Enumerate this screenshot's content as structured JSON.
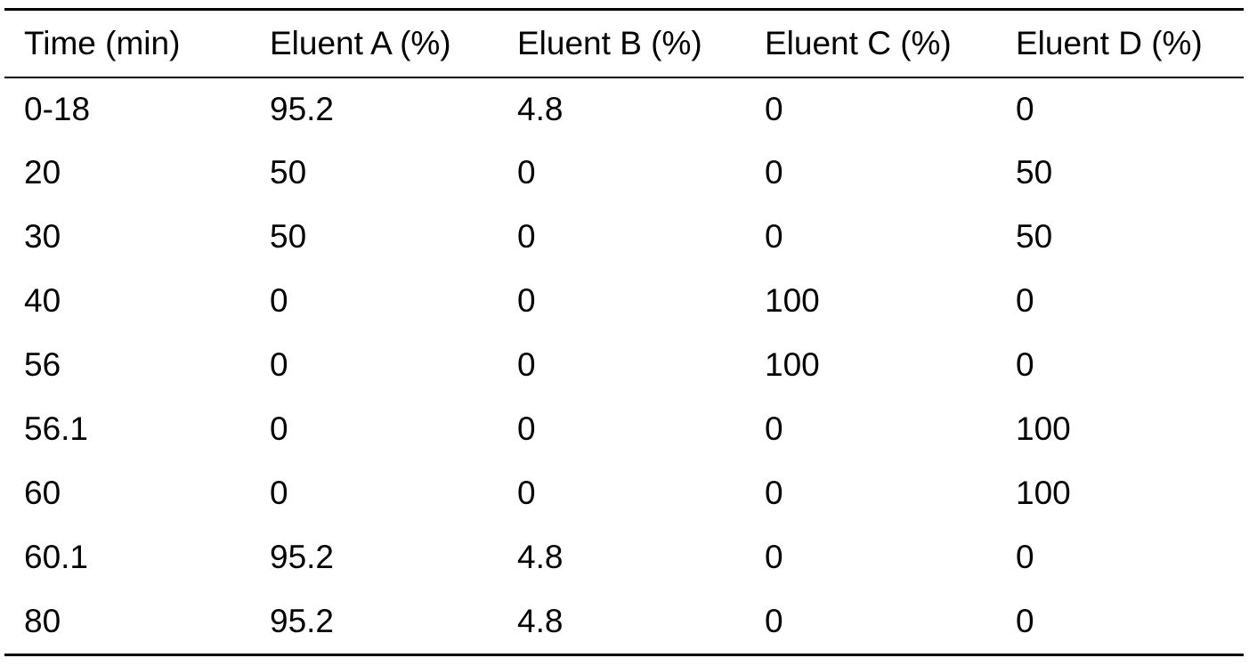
{
  "table": {
    "headers": [
      "Time (min)",
      "Eluent A (%)",
      "Eluent B (%)",
      "Eluent C (%)",
      "Eluent D (%)"
    ],
    "rows": [
      [
        "0-18",
        "95.2",
        "4.8",
        "0",
        "0"
      ],
      [
        "20",
        "50",
        "0",
        "0",
        "50"
      ],
      [
        "30",
        "50",
        "0",
        "0",
        "50"
      ],
      [
        "40",
        "0",
        "0",
        "100",
        "0"
      ],
      [
        "56",
        "0",
        "0",
        "100",
        "0"
      ],
      [
        "56.1",
        "0",
        "0",
        "0",
        "100"
      ],
      [
        "60",
        "0",
        "0",
        "0",
        "100"
      ],
      [
        "60.1",
        "95.2",
        "4.8",
        "0",
        "0"
      ],
      [
        "80",
        "95.2",
        "4.8",
        "0",
        "0"
      ]
    ]
  }
}
